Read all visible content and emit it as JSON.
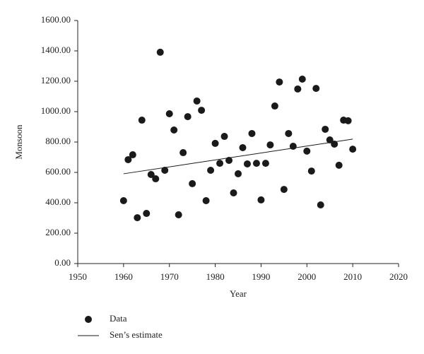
{
  "chart_data": {
    "type": "scatter",
    "x_label": "Year",
    "y_label": "Monsoon",
    "xlim": [
      1950,
      2020
    ],
    "xticks": [
      1950,
      1960,
      1970,
      1980,
      1990,
      2000,
      2010,
      2020
    ],
    "ylim": [
      0,
      1600
    ],
    "yticks": [
      {
        "value": 0,
        "label": "0.00"
      },
      {
        "value": 200,
        "label": "200.00"
      },
      {
        "value": 400,
        "label": "400.00"
      },
      {
        "value": 600,
        "label": "600.00"
      },
      {
        "value": 800,
        "label": "800.00"
      },
      {
        "value": 1000,
        "label": "1000.00"
      },
      {
        "value": 1200,
        "label": "1200.00"
      },
      {
        "value": 1400,
        "label": "1400.00"
      },
      {
        "value": 1600,
        "label": "1600.00"
      }
    ],
    "x": [
      1960,
      1961,
      1962,
      1963,
      1964,
      1965,
      1966,
      1967,
      1968,
      1969,
      1970,
      1971,
      1972,
      1973,
      1974,
      1975,
      1976,
      1977,
      1978,
      1979,
      1980,
      1981,
      1982,
      1983,
      1984,
      1985,
      1986,
      1987,
      1988,
      1989,
      1990,
      1991,
      1992,
      1993,
      1994,
      1995,
      1996,
      1997,
      1998,
      1999,
      2000,
      2001,
      2002,
      2003,
      2004,
      2005,
      2006,
      2007,
      2008,
      2009,
      2010
    ],
    "series": [
      {
        "name": "Data",
        "color": "#1a1a1a",
        "values": [
          414,
          684,
          716,
          302,
          944,
          330,
          586,
          558,
          1391,
          614,
          986,
          879,
          321,
          730,
          967,
          526,
          1070,
          1009,
          414,
          614,
          791,
          660,
          837,
          679,
          465,
          591,
          763,
          656,
          856,
          660,
          419,
          660,
          781,
          1037,
          1195,
          488,
          856,
          772,
          1149,
          1214,
          740,
          609,
          1153,
          386,
          884,
          814,
          786,
          647,
          944,
          940,
          753
        ]
      },
      {
        "name": "Sen’s estimate",
        "color": "#1a1a1a",
        "x": [
          1960,
          2010
        ],
        "values": [
          591,
          819
        ]
      }
    ]
  }
}
